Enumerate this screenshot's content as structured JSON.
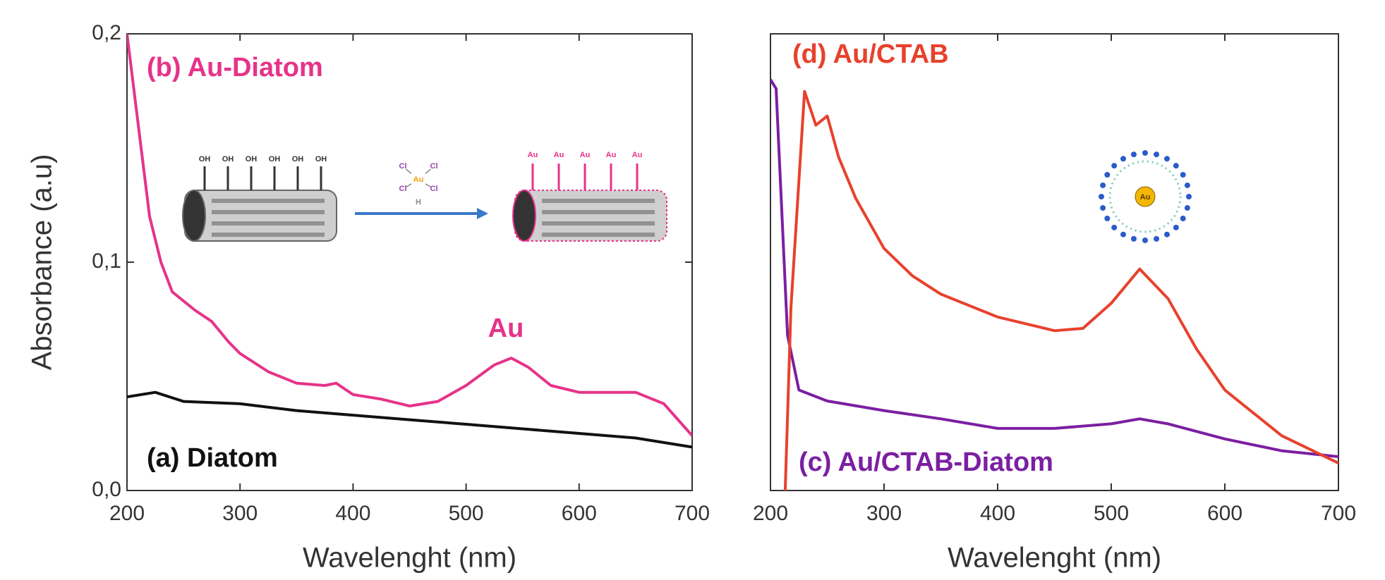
{
  "chart_data": [
    {
      "type": "line",
      "y_label": "Absorbance (a.u)",
      "x_label": "Wavelenght (nm)",
      "xlim": [
        200,
        700
      ],
      "xticks": [
        200,
        300,
        400,
        500,
        600,
        700
      ],
      "ylim": [
        0,
        0.2
      ],
      "yticks": [
        {
          "value": 0,
          "label": "0,0"
        },
        {
          "value": 0.1,
          "label": "0,1"
        },
        {
          "value": 0.2,
          "label": "0,2"
        }
      ],
      "series": [
        {
          "name": "(a) Diatom",
          "color": "#111111",
          "x": [
            200,
            225,
            250,
            300,
            350,
            400,
            450,
            500,
            550,
            600,
            650,
            700
          ],
          "values": [
            0.041,
            0.043,
            0.039,
            0.038,
            0.035,
            0.033,
            0.031,
            0.029,
            0.027,
            0.025,
            0.023,
            0.019
          ]
        },
        {
          "name": "(b) Au-Diatom",
          "color": "#e6338a",
          "x": [
            200,
            210,
            220,
            230,
            240,
            250,
            260,
            275,
            290,
            300,
            325,
            350,
            375,
            385,
            400,
            425,
            450,
            475,
            500,
            525,
            540,
            555,
            575,
            600,
            625,
            650,
            675,
            700
          ],
          "values": [
            0.2,
            0.16,
            0.12,
            0.1,
            0.087,
            0.083,
            0.079,
            0.074,
            0.065,
            0.06,
            0.052,
            0.047,
            0.046,
            0.047,
            0.042,
            0.04,
            0.037,
            0.039,
            0.046,
            0.055,
            0.058,
            0.054,
            0.046,
            0.043,
            0.043,
            0.043,
            0.038,
            0.024
          ]
        }
      ],
      "annotations": [
        "Au"
      ]
    },
    {
      "type": "line",
      "x_label": "Wavelenght (nm)",
      "xlim": [
        200,
        700
      ],
      "xticks": [
        200,
        300,
        400,
        500,
        600,
        700
      ],
      "ylim": [
        0,
        1
      ],
      "series": [
        {
          "name": "(c) Au/CTAB-Diatom",
          "color": "#7b1fa2",
          "x": [
            200,
            205,
            215,
            225,
            250,
            300,
            350,
            400,
            450,
            500,
            525,
            550,
            600,
            650,
            700
          ],
          "values": [
            0.9,
            0.88,
            0.34,
            0.22,
            0.196,
            0.175,
            0.157,
            0.136,
            0.136,
            0.146,
            0.157,
            0.146,
            0.113,
            0.087,
            0.074
          ]
        },
        {
          "name": "(d) Au/CTAB",
          "color": "#e8412c",
          "x": [
            213,
            218,
            230,
            240,
            250,
            260,
            275,
            300,
            325,
            350,
            400,
            450,
            475,
            500,
            525,
            550,
            575,
            600,
            650,
            700
          ],
          "values": [
            0,
            0.4,
            0.874,
            0.8,
            0.82,
            0.73,
            0.64,
            0.53,
            0.47,
            0.43,
            0.38,
            0.35,
            0.355,
            0.41,
            0.485,
            0.42,
            0.31,
            0.22,
            0.12,
            0.06
          ]
        }
      ]
    }
  ],
  "illustrations": {
    "hydroxyl_labels": [
      "OH",
      "OH",
      "OH",
      "OH",
      "OH",
      "OH"
    ],
    "gold_labels": [
      "Au",
      "Au",
      "Au",
      "Au",
      "Au"
    ],
    "complex": {
      "center": "Au",
      "ligands": [
        "Cl",
        "Cl",
        "Cl",
        "Cl"
      ],
      "bottom": "H"
    },
    "particle_label": "Au"
  }
}
